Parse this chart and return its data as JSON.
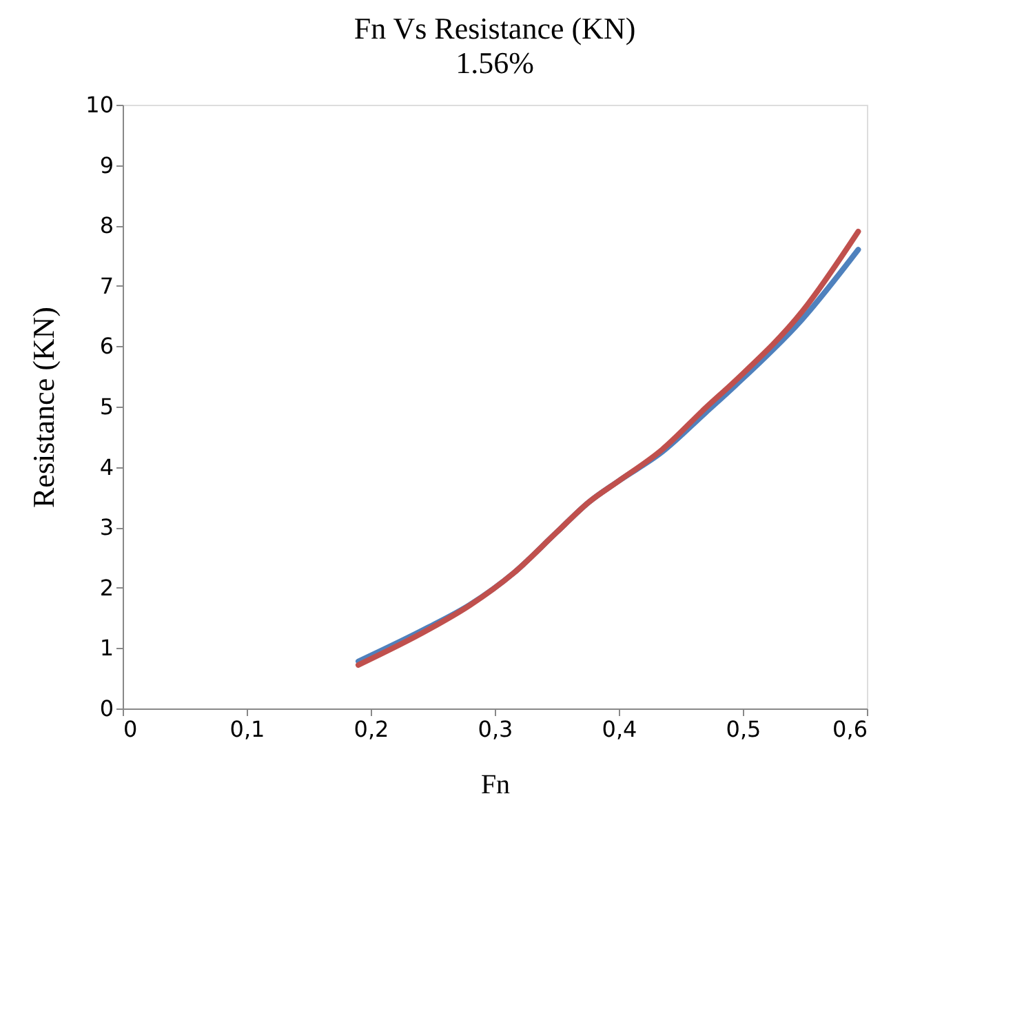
{
  "chart_data": {
    "type": "line",
    "title": "Fn Vs Resistance (KN)",
    "xlabel": "Fn",
    "ylabel": "Resistance (KN)",
    "annotations": [
      "1.56%"
    ],
    "xlim": [
      0,
      0.6
    ],
    "xticks": [
      0,
      {
        "value": 0.1,
        "label": "0,1"
      },
      {
        "value": 0.2,
        "label": "0,2"
      },
      {
        "value": 0.3,
        "label": "0,3"
      },
      {
        "value": 0.4,
        "label": "0,4"
      },
      {
        "value": 0.5,
        "label": "0,5"
      },
      {
        "value": 0.6,
        "label": "0,6"
      }
    ],
    "ylim": [
      0,
      10
    ],
    "yticks": [
      0,
      1,
      2,
      3,
      4,
      5,
      6,
      7,
      8,
      9,
      10
    ],
    "grid": false,
    "line_style": "solid",
    "marker": "none",
    "series": [
      {
        "color": "#4f81bd",
        "x": [
          0.19,
          0.246,
          0.28,
          0.315,
          0.35,
          0.376,
          0.4,
          0.435,
          0.47,
          0.494,
          0.548,
          0.593
        ],
        "values": [
          0.78,
          1.34,
          1.72,
          2.24,
          2.92,
          3.42,
          3.77,
          4.25,
          4.9,
          5.35,
          6.45,
          7.6
        ]
      },
      {
        "color": "#c0504d",
        "x": [
          0.19,
          0.246,
          0.28,
          0.315,
          0.35,
          0.376,
          0.4,
          0.435,
          0.47,
          0.494,
          0.548,
          0.593
        ],
        "values": [
          0.72,
          1.3,
          1.71,
          2.24,
          2.92,
          3.42,
          3.77,
          4.29,
          4.98,
          5.43,
          6.58,
          7.9
        ]
      }
    ]
  }
}
